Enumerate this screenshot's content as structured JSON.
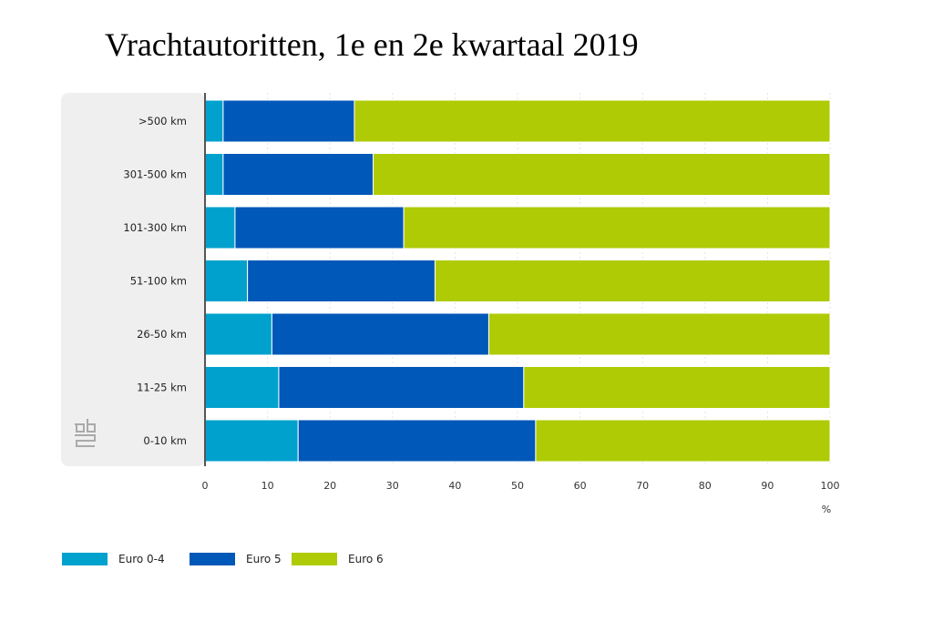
{
  "title": "Vrachtautoritten, 1e en 2e kwartaal 2019",
  "chart_data": {
    "type": "bar",
    "orientation": "horizontal",
    "stacked": true,
    "categories": [
      ">500 km",
      "301-500 km",
      "101-300 km",
      "51-100 km",
      "26-50 km",
      "11-25 km",
      "0-10 km"
    ],
    "series": [
      {
        "name": "Euro 0-4",
        "color": "#00a1cd",
        "values": [
          2.9,
          2.9,
          4.8,
          6.8,
          10.7,
          11.8,
          14.9
        ]
      },
      {
        "name": "Euro 5",
        "color": "#0058b8",
        "values": [
          21.0,
          24.0,
          27.0,
          30.0,
          34.7,
          39.2,
          38.0
        ]
      },
      {
        "name": "Euro 6",
        "color": "#afcb05",
        "values": [
          76.1,
          73.1,
          68.2,
          63.2,
          54.6,
          49.0,
          47.1
        ]
      }
    ],
    "xlim": [
      0,
      100
    ],
    "xticks": [
      "0",
      "10",
      "20",
      "30",
      "40",
      "50",
      "60",
      "70",
      "80",
      "90",
      "100"
    ],
    "xlabel": "%",
    "grid": true,
    "legend": "bottom-left"
  }
}
